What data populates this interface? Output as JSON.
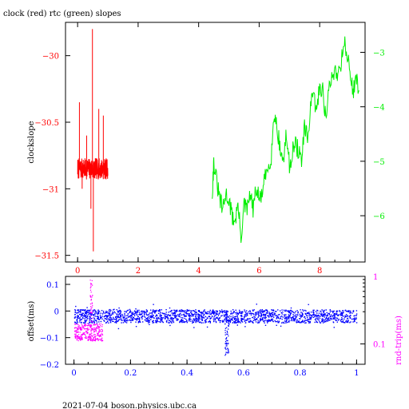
{
  "title": "clock (red) rtc (green) slopes",
  "footer": "2021-07-04 boson.physics.ubc.ca",
  "colors": {
    "red": "#ff0000",
    "green": "#00ee00",
    "blue": "#0000ff",
    "magenta": "#ff00ff",
    "axis": "#000000"
  },
  "chart_data": [
    {
      "type": "line",
      "title": "clock (red) rtc (green) slopes",
      "ylabel": "clockslope",
      "xlim": [
        -0.4,
        9.5
      ],
      "ylim": [
        -31.55,
        -29.75
      ],
      "y2lim": [
        -6.85,
        -2.45
      ],
      "x_ticks": [
        "0",
        "2",
        "4",
        "6",
        "8"
      ],
      "y_ticks": [
        "-30",
        "-30.5",
        "-31",
        "-31.5"
      ],
      "y2_ticks": [
        "-3",
        "-4",
        "-5",
        "-6"
      ],
      "series": [
        {
          "axis": "left",
          "color": "red",
          "x_range": [
            0.0,
            1.0
          ],
          "baseline": -30.85,
          "spikes": [
            [
              0.49,
              -29.8
            ],
            [
              0.52,
              -31.47
            ],
            [
              0.44,
              -31.15
            ],
            [
              0.06,
              -30.35
            ],
            [
              0.3,
              -30.6
            ],
            [
              0.7,
              -30.4
            ],
            [
              0.15,
              -31.0
            ],
            [
              0.85,
              -30.45
            ]
          ]
        },
        {
          "axis": "right",
          "color": "green",
          "x": [
            4.45,
            4.5,
            4.6,
            4.7,
            4.8,
            4.9,
            5.0,
            5.1,
            5.2,
            5.3,
            5.4,
            5.5,
            5.6,
            5.7,
            5.8,
            5.9,
            6.0,
            6.1,
            6.2,
            6.3,
            6.4,
            6.5,
            6.6,
            6.7,
            6.8,
            6.9,
            7.0,
            7.1,
            7.2,
            7.3,
            7.4,
            7.5,
            7.6,
            7.7,
            7.8,
            7.9,
            8.0,
            8.1,
            8.2,
            8.3,
            8.4,
            8.5,
            8.6,
            8.7,
            8.8,
            8.9,
            9.0,
            9.1,
            9.2,
            9.3
          ],
          "y": [
            -5.6,
            -5.0,
            -5.4,
            -5.7,
            -5.9,
            -5.6,
            -5.7,
            -6.0,
            -6.1,
            -5.8,
            -6.4,
            -5.8,
            -5.9,
            -5.6,
            -5.9,
            -5.5,
            -5.7,
            -5.6,
            -5.3,
            -5.1,
            -4.9,
            -4.1,
            -4.4,
            -4.8,
            -5.0,
            -4.5,
            -5.1,
            -4.8,
            -4.7,
            -4.8,
            -5.0,
            -4.4,
            -4.6,
            -4.0,
            -3.8,
            -4.1,
            -3.6,
            -3.7,
            -4.2,
            -3.7,
            -3.5,
            -3.3,
            -3.4,
            -3.2,
            -2.8,
            -3.0,
            -3.4,
            -3.7,
            -3.5,
            -3.7
          ]
        }
      ]
    },
    {
      "type": "scatter",
      "ylabel": "offset(ms)",
      "y2label": "rnd-trip(ms)",
      "xlim": [
        -0.03,
        1.03
      ],
      "ylim": [
        -0.2,
        0.13
      ],
      "x_ticks": [
        "0",
        "0.2",
        "0.4",
        "0.6",
        "0.8",
        "1"
      ],
      "y_ticks": [
        "0.1",
        "0",
        "-0.1",
        "-0.2"
      ],
      "y2_ticks": [
        "1",
        "0.1"
      ],
      "y2_scale": "log",
      "y2lim": [
        0.05,
        1.0
      ],
      "series": [
        {
          "axis": "left",
          "color": "blue",
          "x_range": [
            0.0,
            1.0
          ],
          "center": -0.02,
          "spread": 0.025,
          "dropout": {
            "x": 0.54,
            "min": -0.17
          }
        },
        {
          "axis": "right",
          "color": "magenta",
          "x_range": [
            0.0,
            0.1
          ],
          "center": 0.15,
          "spread_low": 0.11,
          "spread_high": 0.2,
          "spike": {
            "x": 0.06,
            "max": 0.9
          }
        }
      ]
    }
  ]
}
